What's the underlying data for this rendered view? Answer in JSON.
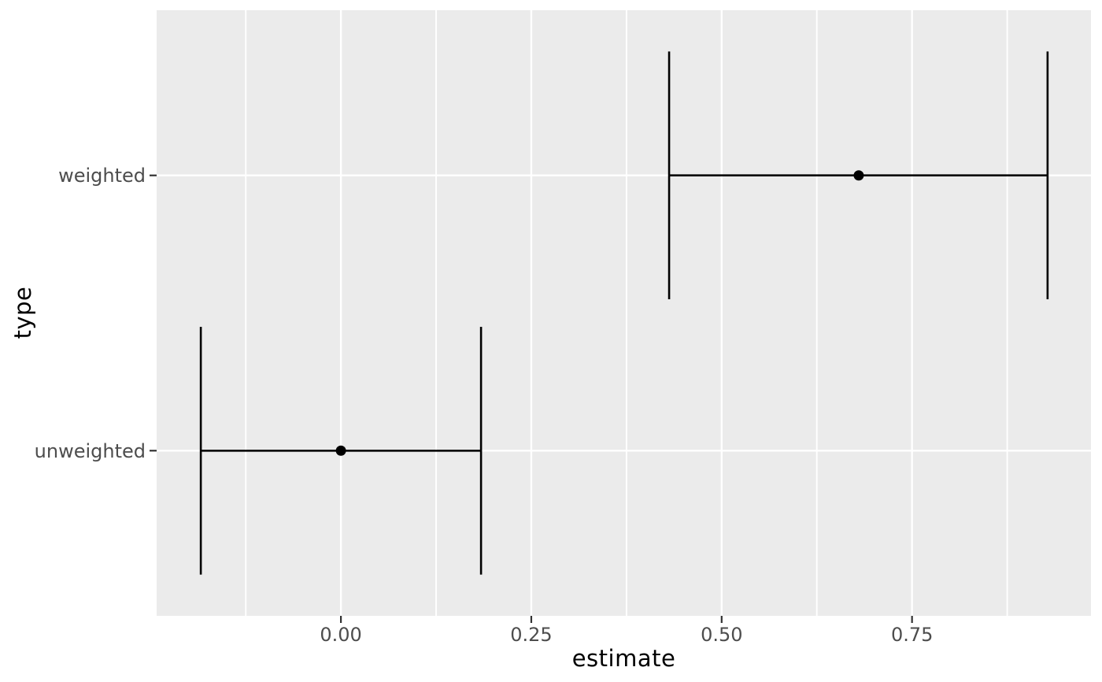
{
  "chart_data": {
    "type": "pointrange",
    "orientation": "horizontal",
    "title": "",
    "xlabel": "estimate",
    "ylabel": "type",
    "x_breaks": [
      0.0,
      0.25,
      0.5,
      0.75
    ],
    "x_tick_labels": [
      "0.00",
      "0.25",
      "0.50",
      "0.75"
    ],
    "x_minor_breaks": [
      -0.125,
      0.125,
      0.375,
      0.625,
      0.875
    ],
    "xlim": [
      -0.242,
      0.985
    ],
    "categories_bottom_to_top": [
      "unweighted",
      "weighted"
    ],
    "rows": [
      {
        "label": "weighted",
        "position": 2,
        "estimate": 0.68,
        "ci_low": 0.431,
        "ci_high": 0.928
      },
      {
        "label": "unweighted",
        "position": 1,
        "estimate": 0.0,
        "ci_low": -0.184,
        "ci_high": 0.184
      }
    ],
    "errorbar_cap_height": 0.9,
    "band_expansion": 0.6,
    "legend": "none",
    "grid": "white major + minor vertical gridlines, white major horizontal gridlines on grey panel",
    "colors": {
      "figure_background": "#FFFFFF",
      "panel_background": "#EBEBEB",
      "grid": "#FFFFFF",
      "geom": "#000000",
      "tick_text": "#4D4D4D",
      "tick_mark": "#333333",
      "axis_title": "#000000"
    }
  }
}
